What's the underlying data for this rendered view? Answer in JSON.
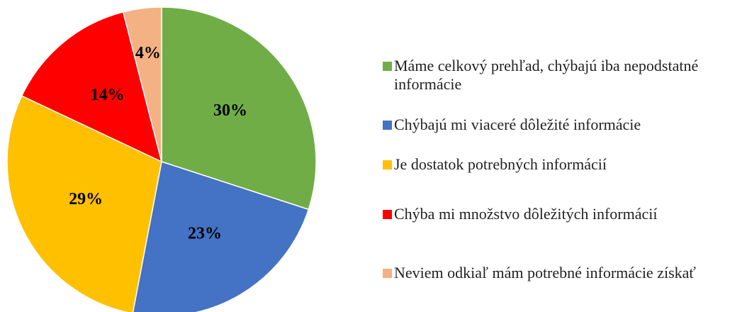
{
  "chart_data": {
    "type": "pie",
    "categories": [
      "Máme celkový prehľad, chýbajú iba nepodstatné informácie",
      "Chýbajú mi viaceré dôležité informácie",
      "Je dostatok potrebných informácií",
      "Chýba mi množstvo dôležitých informácií",
      "Neviem odkiaľ mám potrebné informácie získať"
    ],
    "values": [
      30,
      23,
      29,
      14,
      4
    ],
    "value_labels": [
      "30%",
      "23%",
      "29%",
      "14%",
      "4%"
    ],
    "colors": [
      "#70ad47",
      "#4472c4",
      "#ffc000",
      "#ff0000",
      "#f4b183"
    ],
    "legend": "right"
  }
}
